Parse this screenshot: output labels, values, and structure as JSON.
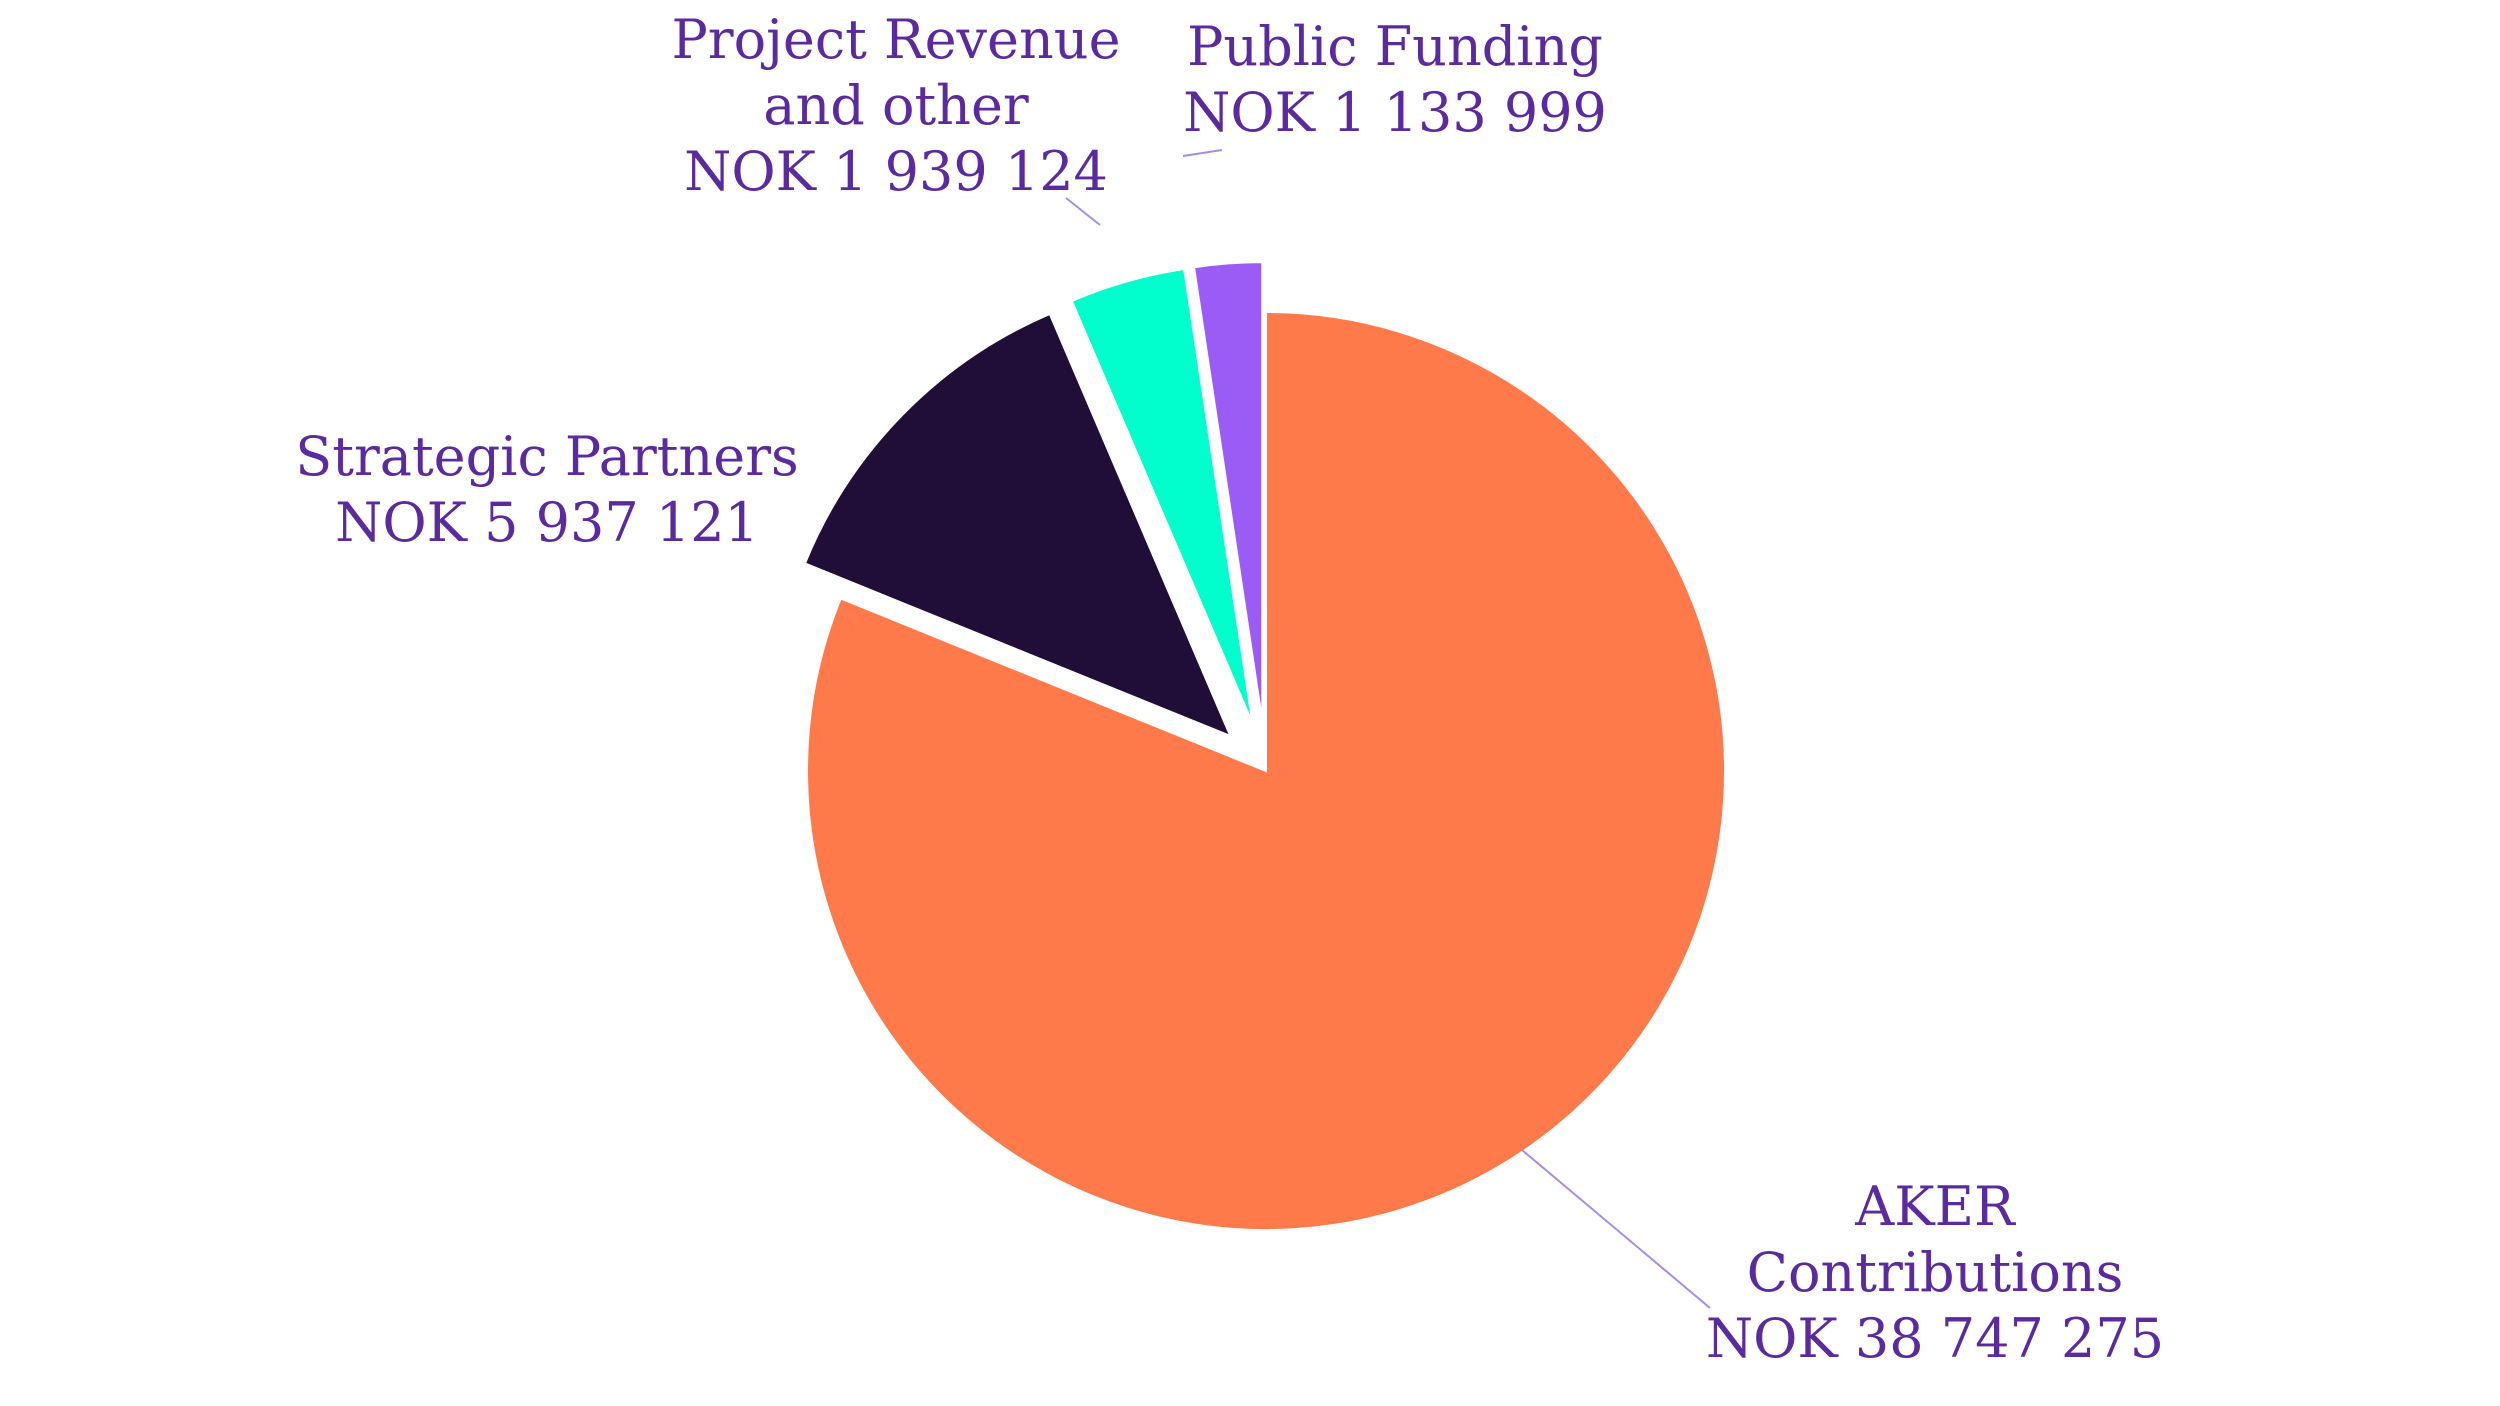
{
  "chart_data": {
    "type": "pie",
    "title": "",
    "start_angle_deg": 0,
    "direction": "clockwise",
    "slices": [
      {
        "name": "AKER Contributions",
        "value": 38747275,
        "label_lines": [
          "AKER",
          "Contributions",
          "NOK 38 747 275"
        ],
        "color": "#FF7A4A",
        "exploded": false,
        "label_position": "bottom-right"
      },
      {
        "name": "Strategic Partners",
        "value": 5937121,
        "label_lines": [
          "Strategic Partners",
          "NOK 5 937 121"
        ],
        "color": "#200D38",
        "exploded": true,
        "label_position": "left"
      },
      {
        "name": "Project Revenue and other",
        "value": 1939124,
        "label_lines": [
          "Project Revenue",
          "and other",
          "NOK 1 939 124"
        ],
        "color": "#00FFCC",
        "exploded": true,
        "label_position": "top"
      },
      {
        "name": "Public Funding",
        "value": 1133999,
        "label_lines": [
          "Public Funding",
          "NOK 1 133 999"
        ],
        "color": "#9A5CF5",
        "exploded": true,
        "label_position": "top-right"
      }
    ],
    "label_color": "#5B2A9E",
    "leader_line_color": "#A98BE8",
    "legend": "none"
  }
}
